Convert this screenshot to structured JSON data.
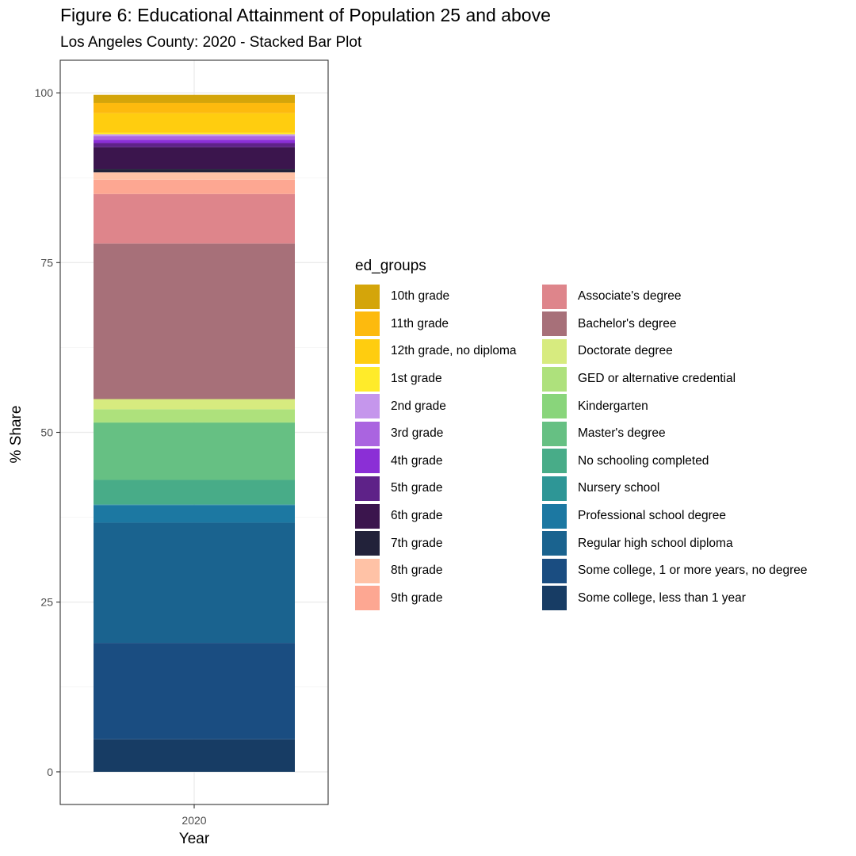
{
  "figure": {
    "title": "Figure 6: Educational Attainment of Population 25 and above",
    "subtitle": "Los Angeles County: 2020 - Stacked Bar Plot"
  },
  "chart_data": {
    "type": "bar",
    "stacked": true,
    "title": "Figure 6: Educational Attainment of Population 25 and above",
    "subtitle": "Los Angeles County: 2020 - Stacked Bar Plot",
    "xlabel": "Year",
    "ylabel": "% Share",
    "categories": [
      "2020"
    ],
    "ylim": [
      -4.8,
      104.8
    ],
    "yticks": [
      0,
      25,
      50,
      75,
      100
    ],
    "grid": true,
    "legend_title": "ed_groups",
    "legend_position": "right",
    "series": [
      {
        "name": "10th grade",
        "color": "#D4A50A",
        "values": [
          1.2
        ]
      },
      {
        "name": "11th grade",
        "color": "#FDBA0E",
        "values": [
          1.5
        ]
      },
      {
        "name": "12th grade, no diploma",
        "color": "#FFCD0F",
        "values": [
          2.9
        ]
      },
      {
        "name": "1st grade",
        "color": "#FFEB2A",
        "values": [
          0.2
        ]
      },
      {
        "name": "2nd grade",
        "color": "#C596EC",
        "values": [
          0.3
        ]
      },
      {
        "name": "3rd grade",
        "color": "#AA64E0",
        "values": [
          0.5
        ]
      },
      {
        "name": "4th grade",
        "color": "#8B2FD6",
        "values": [
          0.5
        ]
      },
      {
        "name": "5th grade",
        "color": "#5E2288",
        "values": [
          0.6
        ]
      },
      {
        "name": "6th grade",
        "color": "#3B154D",
        "values": [
          3.2
        ]
      },
      {
        "name": "7th grade",
        "color": "#22223A",
        "values": [
          0.5
        ]
      },
      {
        "name": "8th grade",
        "color": "#FFC2A6",
        "values": [
          1.1
        ]
      },
      {
        "name": "9th grade",
        "color": "#FDA792",
        "values": [
          2.1
        ]
      },
      {
        "name": "Associate's degree",
        "color": "#DE858B",
        "values": [
          7.3
        ]
      },
      {
        "name": "Bachelor's degree",
        "color": "#A77079",
        "values": [
          22.9
        ]
      },
      {
        "name": "Doctorate degree",
        "color": "#D7EB7F",
        "values": [
          1.5
        ]
      },
      {
        "name": "GED or alternative credential",
        "color": "#AEE17C",
        "values": [
          1.9
        ]
      },
      {
        "name": "Kindergarten",
        "color": "#89D57B",
        "values": [
          0.1
        ]
      },
      {
        "name": "Master's degree",
        "color": "#66C083",
        "values": [
          8.4
        ]
      },
      {
        "name": "No schooling completed",
        "color": "#48AC88",
        "values": [
          3.6
        ]
      },
      {
        "name": "Nursery school",
        "color": "#2E9696",
        "values": [
          0.1
        ]
      },
      {
        "name": "Professional school degree",
        "color": "#1C78A2",
        "values": [
          2.6
        ]
      },
      {
        "name": "Regular high school diploma",
        "color": "#1A638F",
        "values": [
          17.7
        ]
      },
      {
        "name": "Some college, 1 or more years, no degree",
        "color": "#1A4D81",
        "values": [
          14.2
        ]
      },
      {
        "name": "Some college, less than 1 year",
        "color": "#173C64",
        "values": [
          4.8
        ]
      }
    ]
  }
}
